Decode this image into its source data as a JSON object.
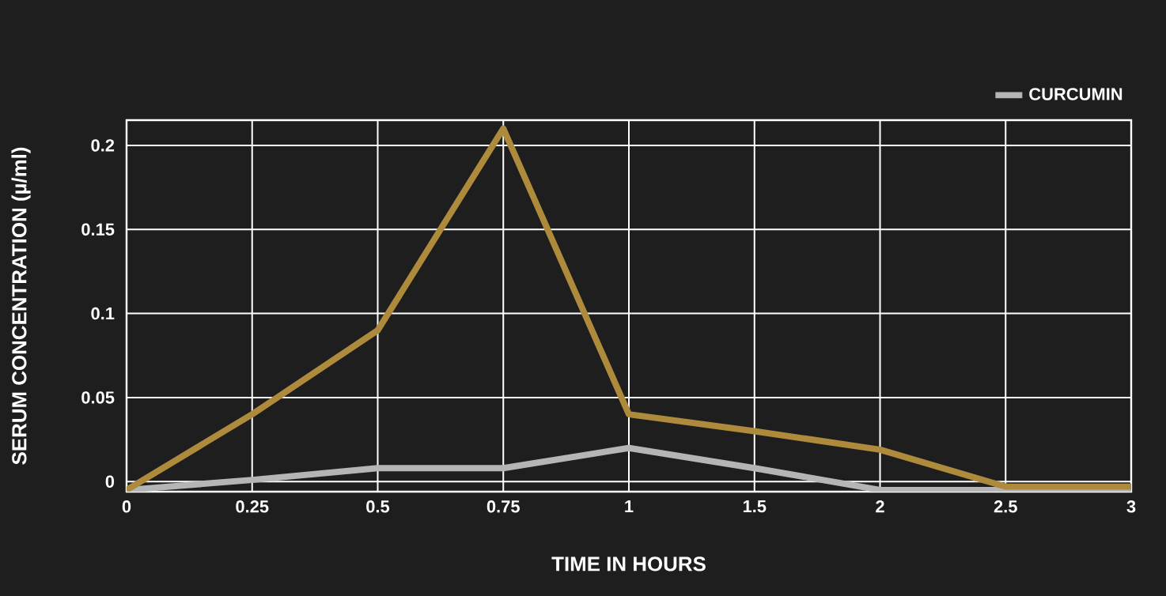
{
  "chart_data": {
    "type": "line",
    "xlabel": "TIME IN HOURS",
    "ylabel": "SERUM CONCENTRATION (µ/ml)",
    "categories": [
      "0",
      "0.25",
      "0.5",
      "0.75",
      "1",
      "1.5",
      "2",
      "2.5",
      "3"
    ],
    "ylim": [
      -0.006,
      0.215
    ],
    "yticks": [
      0,
      0.05,
      0.1,
      0.15,
      0.2
    ],
    "grid": true,
    "legend": "top right",
    "marker": "none",
    "line_style": "solid",
    "series": [
      {
        "name": "CURCUMIN",
        "color": "#b5b5b5",
        "values": [
          -0.005,
          0.001,
          0.008,
          0.008,
          0.02,
          0.008,
          -0.005,
          -0.005,
          -0.005
        ]
      },
      {
        "color": "#ad8a3c",
        "values": [
          -0.005,
          0.04,
          0.09,
          0.21,
          0.04,
          0.03,
          0.019,
          -0.003,
          -0.003
        ]
      }
    ]
  }
}
